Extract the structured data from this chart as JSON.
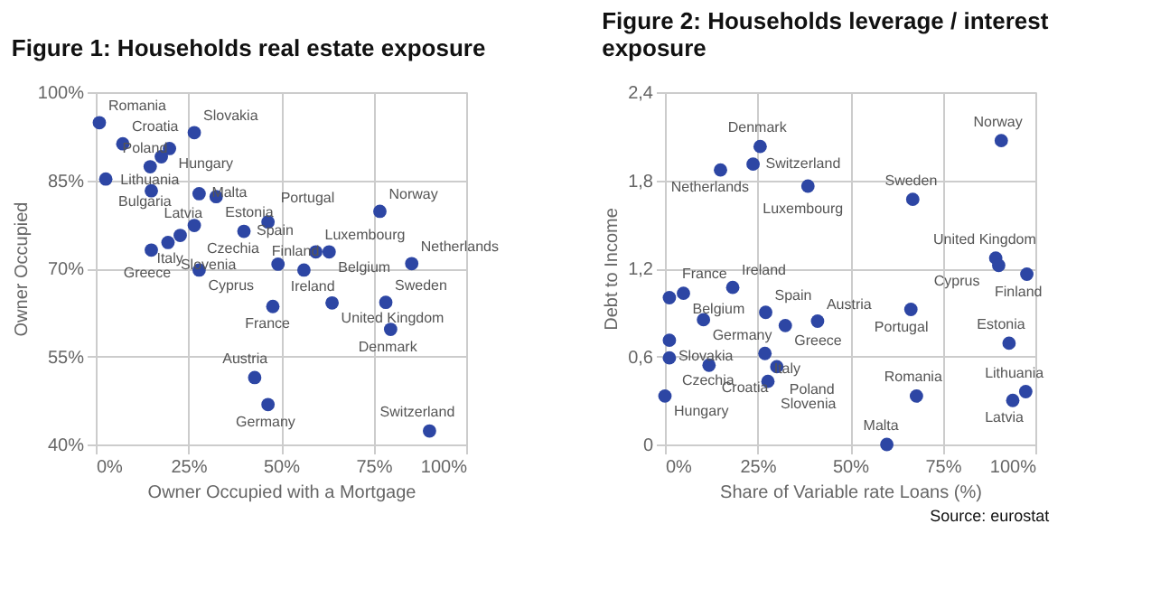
{
  "chart_data": [
    {
      "type": "scatter",
      "title": "Figure 1: Households real estate exposure",
      "xlabel": "Owner Occupied with a Mortgage",
      "ylabel": "Owner Occupied",
      "xlim": [
        0,
        100
      ],
      "ylim": [
        40,
        100
      ],
      "xticks": [
        {
          "value": 0,
          "label": "0%"
        },
        {
          "value": 25,
          "label": "25%"
        },
        {
          "value": 50,
          "label": "50%"
        },
        {
          "value": 75,
          "label": "75%"
        },
        {
          "value": 100,
          "label": "100%"
        }
      ],
      "yticks": [
        {
          "value": 40,
          "label": "40%"
        },
        {
          "value": 55,
          "label": "55%"
        },
        {
          "value": 70,
          "label": "70%"
        },
        {
          "value": 85,
          "label": "85%"
        },
        {
          "value": 100,
          "label": "100%"
        }
      ],
      "grid": true,
      "marker": "circle",
      "series": [
        {
          "color": "#2d46a4",
          "x": [
            0.97,
            7.3,
            26.6,
            19.9,
            17.7,
            14.7,
            2.7,
            15.0,
            27.9,
            32.5,
            26.6,
            22.8,
            19.5,
            15.0,
            27.9,
            40.0,
            46.5,
            49.2,
            47.8,
            42.9,
            46.5,
            59.4,
            63.0,
            56.2,
            63.8,
            76.7,
            85.3,
            78.3,
            79.6,
            90.1
          ],
          "values": [
            94.8,
            91.2,
            93.1,
            90.4,
            89.0,
            87.3,
            85.2,
            83.2,
            82.7,
            82.2,
            77.3,
            75.6,
            74.4,
            73.1,
            69.7,
            76.3,
            77.9,
            70.7,
            63.5,
            51.4,
            46.8,
            72.8,
            72.8,
            69.7,
            64.1,
            79.7,
            70.8,
            64.2,
            59.6,
            42.3
          ],
          "value_labels": [
            "Romania",
            "Croatia",
            "Slovakia",
            "Hungary",
            "Lithuania",
            "Poland",
            "Bulgaria",
            "Latvia",
            "Malta",
            "Estonia",
            "Czechia",
            "Italy",
            "Slovenia",
            "Greece",
            "Cyprus",
            "Spain",
            "Portugal",
            "Ireland",
            "France",
            "Austria",
            "Germany",
            "Luxembourg",
            "Belgium",
            "Finland",
            "United Kingdom",
            "Norway",
            "Netherlands",
            "Sweden",
            "Denmark",
            "Switzerland"
          ]
        }
      ]
    },
    {
      "type": "scatter",
      "title": "Figure 2: Households leverage / interest\nexposure",
      "xlabel": "Share of Variable rate Loans (%)",
      "ylabel": "Debt to Income",
      "xlim": [
        0,
        100
      ],
      "ylim": [
        0,
        2.4
      ],
      "xticks": [
        {
          "value": 0,
          "label": "0%"
        },
        {
          "value": 25,
          "label": "25%"
        },
        {
          "value": 50,
          "label": "50%"
        },
        {
          "value": 75,
          "label": "75%"
        },
        {
          "value": 100,
          "label": "100%"
        }
      ],
      "yticks": [
        0,
        {
          "value": 0.6,
          "label": "0,6"
        },
        {
          "value": 1.2,
          "label": "1,2"
        },
        {
          "value": 1.8,
          "label": "1,8"
        },
        {
          "value": 2.4,
          "label": "2,4"
        }
      ],
      "grid": true,
      "marker": "circle",
      "annotations": [
        "Source: eurostat"
      ],
      "series": [
        {
          "color": "#2d46a4",
          "x": [
            15.0,
            25.7,
            23.8,
            1.2,
            5.0,
            18.3,
            27.2,
            10.4,
            32.5,
            41.2,
            1.2,
            1.2,
            11.9,
            0,
            27.0,
            30.2,
            27.8,
            38.6,
            66.9,
            90.8,
            89.3,
            90.1,
            97.7,
            66.4,
            92.9,
            97.4,
            93.9,
            67.9,
            59.9
          ],
          "values": [
            1.87,
            2.03,
            1.91,
            1.0,
            1.03,
            1.07,
            0.9,
            0.85,
            0.81,
            0.84,
            0.71,
            0.59,
            0.54,
            0.33,
            0.62,
            0.53,
            0.43,
            1.76,
            1.67,
            2.07,
            1.27,
            1.22,
            1.16,
            0.92,
            0.69,
            0.36,
            0.3,
            0.33,
            0.0
          ],
          "value_labels": [
            "Netherlands",
            "Denmark",
            "Switzerland",
            "France",
            "Belgium",
            "Ireland",
            "Spain",
            "Germany",
            "Greece",
            "Austria",
            "Slovakia",
            "Czechia",
            "Croatia",
            "Hungary",
            "Italy",
            "Poland",
            "Slovenia",
            "Luxembourg",
            "Sweden",
            "Norway",
            "United Kingdom",
            "Cyprus",
            "Finland",
            "Portugal",
            "Estonia",
            "Lithuania",
            "Latvia",
            "Romania",
            "Malta"
          ]
        }
      ]
    }
  ]
}
